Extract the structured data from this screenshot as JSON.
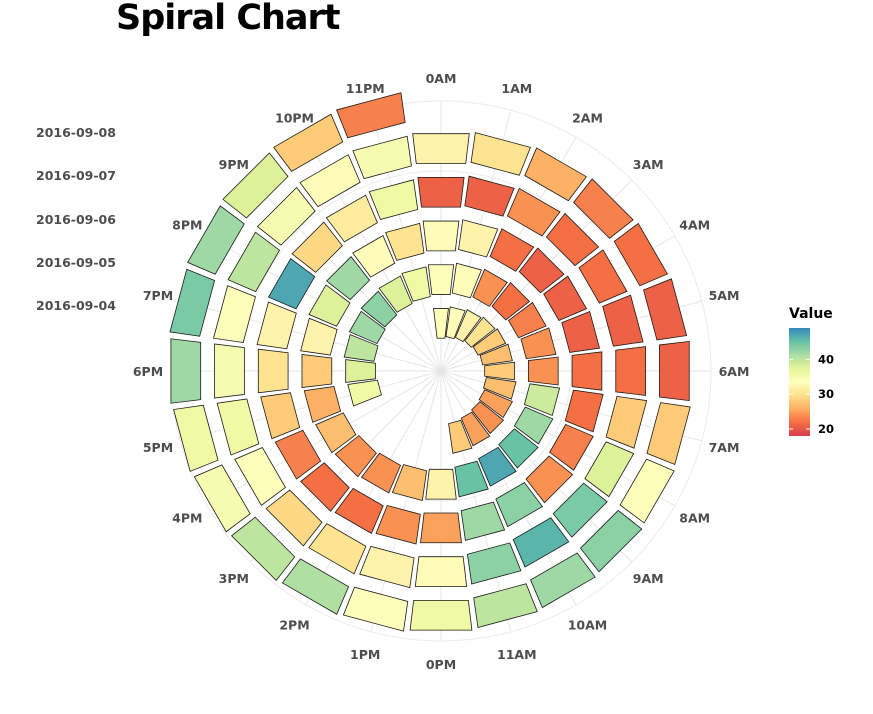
{
  "title": "Spiral Chart",
  "chart_data": {
    "type": "spiral-bar",
    "title": "Spiral Chart",
    "hours": [
      "0AM",
      "1AM",
      "2AM",
      "3AM",
      "4AM",
      "5AM",
      "6AM",
      "7AM",
      "8AM",
      "9AM",
      "10AM",
      "11AM",
      "0PM",
      "1PM",
      "2PM",
      "3PM",
      "4PM",
      "5PM",
      "6PM",
      "7PM",
      "8PM",
      "9PM",
      "10PM",
      "11PM"
    ],
    "days": [
      "2016-09-04",
      "2016-09-05",
      "2016-09-06",
      "2016-09-07",
      "2016-09-08"
    ],
    "series": [
      {
        "date": "2016-09-04",
        "values": [
          34,
          33,
          32,
          30,
          28,
          27,
          28,
          27,
          25,
          24,
          25,
          28,
          null,
          null,
          null,
          null,
          null,
          36,
          38,
          40,
          42,
          43,
          38,
          36
        ]
      },
      {
        "date": "2016-09-05",
        "values": [
          34,
          33,
          24,
          22,
          23,
          24,
          24,
          39,
          42,
          45,
          47,
          45,
          32,
          27,
          24,
          24,
          27,
          26,
          28,
          32,
          38,
          42,
          33,
          30
        ]
      },
      {
        "date": "2016-09-06",
        "values": [
          33,
          32,
          22,
          21,
          21,
          21,
          22,
          22,
          23,
          24,
          43,
          42,
          25,
          24,
          22,
          22,
          23,
          28,
          30,
          32,
          47,
          29,
          31,
          36
        ]
      },
      {
        "date": "2016-09-07",
        "values": [
          21,
          21,
          24,
          22,
          22,
          21,
          22,
          28,
          38,
          44,
          46,
          43,
          33,
          32,
          30,
          29,
          34,
          36,
          35,
          34,
          40,
          35,
          33,
          35
        ]
      },
      {
        "date": "2016-09-08",
        "values": [
          32,
          30,
          26,
          23,
          22,
          21,
          21,
          28,
          34,
          43,
          42,
          40,
          36,
          34,
          41,
          40,
          35,
          36,
          42,
          44,
          42,
          38,
          28,
          23
        ]
      }
    ],
    "color_scale": {
      "name": "Value",
      "ticks": [
        20,
        30,
        40
      ],
      "min": 18,
      "max": 49,
      "colors": [
        "#d53e4f",
        "#f46d43",
        "#fdae61",
        "#fee08b",
        "#ffffbf",
        "#e6f598",
        "#abdda4",
        "#66c2a5",
        "#3288bd"
      ]
    },
    "grid": true
  }
}
